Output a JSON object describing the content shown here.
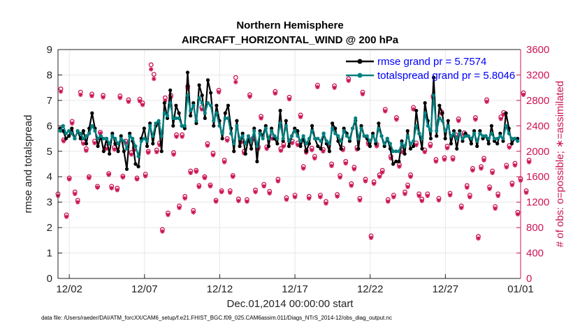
{
  "chart_data": {
    "type": "line",
    "title_line1": "Northern Hemisphere",
    "title_line2": "AIRCRAFT_HORIZONTAL_WIND @ 200 hPa",
    "xlabel": "Dec.01,2014 00:00:00 start",
    "ylabel_left": "rmse and totalspread",
    "ylabel_right": "# of obs: o=possible; ∗=assimilated",
    "left_ylim": [
      0,
      9
    ],
    "left_yticks": [
      "0",
      "1",
      "2",
      "3",
      "4",
      "5",
      "6",
      "7",
      "8",
      "9"
    ],
    "right_ylim": [
      0,
      3600
    ],
    "right_yticks": [
      "0",
      "400",
      "800",
      "1200",
      "1600",
      "2000",
      "2400",
      "2800",
      "3200",
      "3600"
    ],
    "xlim_days": [
      1.25,
      32.0
    ],
    "xtick_labels": [
      "12/02",
      "12/07",
      "12/12",
      "12/17",
      "12/22",
      "12/27",
      "01/01"
    ],
    "xtick_days": [
      2,
      7,
      12,
      17,
      22,
      27,
      32
    ],
    "grid": true,
    "colors": {
      "rmse": "#000000",
      "spread": "#008080",
      "obs": "#cc1455"
    },
    "series": [
      {
        "name": "rmse grand pr = 5.7574",
        "values": [
          5.9,
          5.8,
          5.5,
          5.6,
          5.9,
          5.5,
          5.8,
          5.5,
          5.8,
          5.3,
          5.9,
          6.5,
          5.9,
          5.2,
          5.6,
          5.0,
          5.5,
          4.9,
          5.7,
          5.3,
          5.0,
          5.6,
          5.0,
          4.3,
          5.7,
          5.4,
          4.5,
          4.4,
          5.5,
          5.9,
          5.2,
          6.1,
          5.3,
          6.0,
          6.1,
          5.0,
          6.9,
          6.3,
          7.4,
          6.0,
          6.8,
          6.5,
          6.0,
          5.9,
          8.1,
          6.4,
          6.9,
          6.1,
          7.6,
          7.2,
          6.3,
          7.8,
          7.3,
          6.0,
          6.8,
          6.2,
          5.5,
          6.5,
          6.8,
          5.9,
          5.0,
          6.2,
          5.2,
          5.7,
          4.9,
          5.5,
          5.1,
          5.9,
          4.6,
          5.8,
          5.6,
          6.0,
          5.2,
          5.9,
          5.5,
          5.3,
          6.6,
          5.4,
          6.2,
          5.2,
          5.6,
          5.9,
          5.8,
          5.2,
          5.5,
          5.0,
          5.3,
          6.0,
          5.5,
          5.2,
          5.1,
          5.7,
          5.3,
          5.0,
          6.1,
          5.9,
          5.4,
          5.1,
          5.9,
          5.7,
          5.4,
          5.9,
          6.2,
          5.1,
          6.0,
          5.6,
          5.5,
          5.2,
          5.7,
          5.3,
          6.1,
          5.6,
          5.2,
          5.5,
          5.1,
          4.5,
          4.6,
          4.6,
          5.4,
          4.9,
          5.8,
          5.1,
          5.2,
          6.6,
          5.7,
          5.1,
          6.9,
          6.2,
          5.5,
          7.9,
          5.6,
          6.8,
          6.5,
          5.5,
          6.2,
          5.3,
          5.8,
          5.1,
          5.8,
          5.4,
          5.7,
          5.6,
          5.3,
          5.8,
          5.2,
          5.8,
          5.5,
          5.6,
          5.3,
          6.0,
          5.4,
          5.3,
          5.7,
          5.4,
          6.5,
          5.9,
          5.3,
          5.5,
          5.5
        ],
        "marker": "filled-circle"
      },
      {
        "name": "totalspread grand pr = 5.8046",
        "values": [
          5.8,
          6.0,
          5.7,
          5.8,
          5.7,
          5.5,
          5.8,
          5.7,
          5.5,
          5.6,
          5.7,
          6.0,
          5.8,
          5.5,
          5.6,
          5.5,
          5.5,
          5.3,
          5.6,
          5.5,
          5.3,
          5.5,
          5.4,
          5.1,
          5.6,
          5.5,
          5.2,
          4.8,
          5.4,
          5.5,
          5.4,
          6.0,
          5.6,
          6.1,
          6.2,
          5.6,
          6.5,
          6.4,
          6.9,
          6.3,
          6.3,
          6.3,
          6.0,
          6.0,
          7.2,
          6.6,
          6.8,
          6.2,
          7.1,
          6.9,
          6.5,
          6.9,
          6.8,
          6.2,
          6.5,
          6.0,
          5.7,
          6.3,
          6.3,
          5.7,
          5.3,
          6.0,
          5.5,
          5.6,
          5.3,
          5.6,
          5.4,
          5.8,
          5.2,
          5.7,
          5.5,
          5.9,
          5.5,
          5.8,
          5.6,
          5.5,
          6.1,
          5.5,
          6.0,
          5.4,
          5.6,
          5.8,
          5.6,
          5.4,
          5.6,
          5.3,
          5.5,
          5.8,
          5.5,
          5.5,
          5.4,
          5.7,
          5.4,
          5.3,
          5.9,
          5.7,
          5.6,
          5.4,
          5.8,
          5.6,
          5.5,
          5.9,
          6.3,
          5.5,
          5.9,
          5.6,
          5.6,
          5.4,
          5.6,
          5.4,
          5.9,
          5.6,
          5.3,
          5.5,
          5.3,
          5.0,
          5.0,
          5.0,
          5.3,
          5.2,
          5.6,
          5.3,
          5.4,
          6.0,
          5.7,
          5.5,
          6.5,
          6.0,
          5.8,
          7.2,
          5.8,
          6.3,
          6.2,
          5.8,
          6.0,
          5.6,
          5.7,
          5.5,
          5.7,
          5.5,
          5.6,
          5.6,
          5.5,
          5.7,
          5.4,
          5.7,
          5.6,
          5.6,
          5.5,
          5.7,
          5.5,
          5.5,
          5.6,
          5.5,
          6.0,
          5.7,
          5.5,
          5.5,
          5.4
        ],
        "marker": "filled-circle"
      }
    ],
    "obs_possible": [
      1330,
      2980,
      2180,
      1000,
      1580,
      2470,
      1360,
      1230,
      2930,
      2150,
      2040,
      1600,
      2900,
      2160,
      1450,
      2300,
      2880,
      2070,
      1650,
      1450,
      2060,
      1420,
      2870,
      1610,
      2160,
      2810,
      1980,
      2050,
      1580,
      2820,
      2760,
      1640,
      2000,
      3360,
      3210,
      2020,
      2130,
      770,
      2840,
      1030,
      2880,
      1980,
      2260,
      1140,
      2260,
      1290,
      3020,
      1690,
      1070,
      1700,
      1460,
      2690,
      1600,
      2120,
      1470,
      1970,
      1230,
      2960,
      1380,
      1860,
      2200,
      1380,
      1620,
      3160,
      1250,
      2170,
      2000,
      1240,
      2890,
      2200,
      1390,
      2070,
      2550,
      1480,
      2070,
      1370,
      2230,
      2940,
      1560,
      2040,
      2110,
      1270,
      2850,
      2160,
      1310,
      2130,
      2570,
      1760,
      2010,
      1290,
      2050,
      1920,
      3040,
      1310,
      2030,
      1210,
      2120,
      1800,
      3030,
      1320,
      1620,
      2050,
      1840,
      3140,
      1490,
      1750,
      2060,
      1260,
      2930,
      1560,
      2140,
      670,
      1520,
      2110,
      1630,
      1700,
      2660,
      1240,
      1920,
      1310,
      2530,
      1790,
      2020,
      1360,
      1470,
      1630,
      2690,
      2130,
      1330,
      1250,
      2020,
      1330,
      2110,
      2870,
      1870,
      1260,
      2620,
      1900,
      2080,
      1340,
      1900,
      2260,
      2510,
      1140,
      2290,
      1460,
      1310,
      1730,
      2530,
      660,
      1760,
      1890,
      2810,
      1440,
      1690,
      1130,
      1330,
      2540,
      2610,
      1780,
      2090,
      1500,
      1810,
      1040,
      1570,
      2920,
      1380,
      1860
    ],
    "obs_assimilated": [
      1310,
      2950,
      2170,
      980,
      1570,
      2450,
      1340,
      1210,
      2900,
      2130,
      2020,
      1590,
      2880,
      2140,
      1440,
      2290,
      2860,
      2050,
      1640,
      1430,
      2040,
      1400,
      2850,
      1600,
      2140,
      2790,
      1960,
      2030,
      1570,
      2800,
      2740,
      1620,
      1990,
      3300,
      3150,
      2000,
      2110,
      750,
      2810,
      1010,
      2860,
      1960,
      2240,
      1120,
      2240,
      1270,
      3000,
      1670,
      1050,
      1690,
      1450,
      2670,
      1590,
      2100,
      1460,
      1950,
      1220,
      2940,
      1370,
      1840,
      2180,
      1360,
      1610,
      3100,
      1230,
      2150,
      1980,
      1220,
      2870,
      2180,
      1370,
      2050,
      2530,
      1460,
      2050,
      1350,
      2210,
      2920,
      1540,
      2020,
      2090,
      1250,
      2830,
      2140,
      1290,
      2110,
      2550,
      1740,
      1990,
      1270,
      2030,
      1900,
      3020,
      1290,
      2010,
      1190,
      2100,
      1780,
      3010,
      1300,
      1600,
      2030,
      1820,
      3120,
      1470,
      1730,
      2040,
      1240,
      2910,
      1540,
      2120,
      650,
      1500,
      2090,
      1610,
      1680,
      2640,
      1220,
      1900,
      1290,
      2510,
      1770,
      2000,
      1340,
      1450,
      1610,
      2670,
      2110,
      1310,
      1230,
      2000,
      1310,
      2090,
      2850,
      1850,
      1240,
      2600,
      1880,
      2060,
      1320,
      1880,
      2240,
      2490,
      1120,
      2270,
      1440,
      1290,
      1710,
      2510,
      640,
      1740,
      1870,
      2790,
      1420,
      1670,
      1110,
      1310,
      2520,
      2590,
      1760,
      2070,
      1480,
      1790,
      1020,
      1550,
      2900,
      1360,
      1840
    ],
    "footer": "data file: /Users/raeder/DAI/ATM_forcXX/CAM6_setup/f.e21.FHIST_BGC.f09_025.CAM6assim.011/Diags_NTrS_2014-12/obs_diag_output.nc"
  }
}
